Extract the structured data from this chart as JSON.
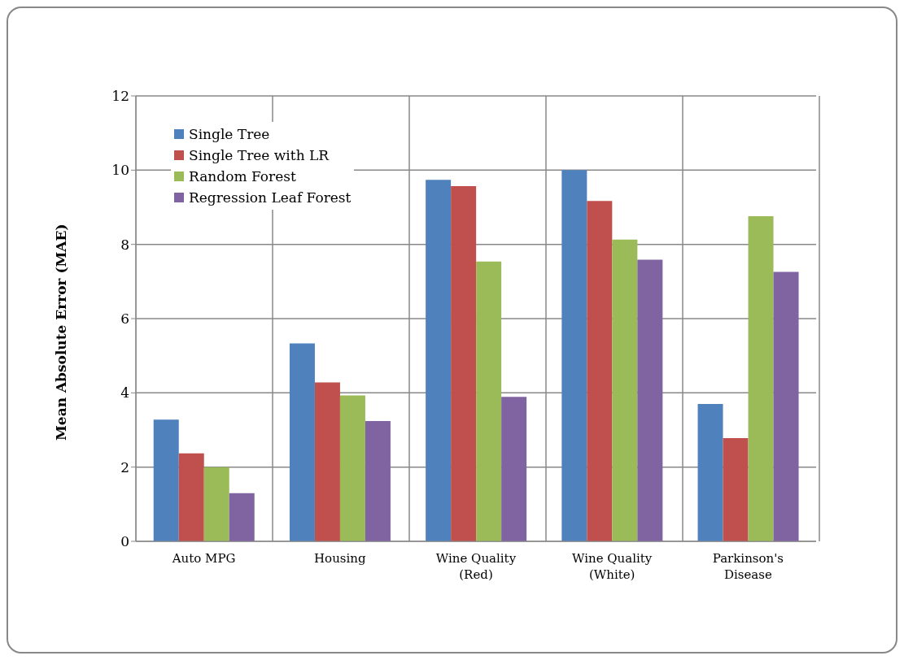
{
  "chart_data": {
    "type": "bar",
    "ylabel": "Mean Absolute Error (MAE)",
    "categories": [
      "Auto MPG",
      "Housing",
      "Wine Quality (Red)",
      "Wine Quality (White)",
      "Parkinson's Disease"
    ],
    "series": [
      {
        "name": "Single Tree",
        "color": "#4f81bd",
        "values": [
          3.28,
          5.33,
          9.74,
          10.0,
          3.7
        ]
      },
      {
        "name": "Single Tree with LR",
        "color": "#c0504d",
        "values": [
          2.37,
          4.28,
          9.57,
          9.17,
          2.78
        ]
      },
      {
        "name": "Random Forest",
        "color": "#9bbb59",
        "values": [
          2.0,
          3.93,
          7.54,
          8.13,
          8.76
        ]
      },
      {
        "name": "Regression Leaf Forest",
        "color": "#8064a2",
        "values": [
          1.3,
          3.24,
          3.89,
          7.59,
          7.26
        ]
      }
    ],
    "ylim": [
      0,
      12
    ],
    "yticks": [
      0,
      2,
      4,
      6,
      8,
      10,
      12
    ],
    "grid": true,
    "legend": "top left"
  }
}
